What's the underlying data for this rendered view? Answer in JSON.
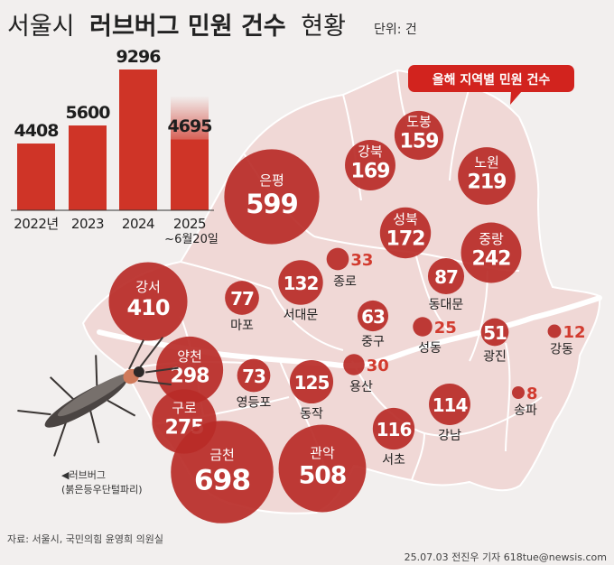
{
  "header": {
    "title_light": "서울시",
    "title_bold": "러브버그 민원 건수",
    "title_end": "현황",
    "unit": "단위: 건"
  },
  "legend": {
    "label": "올해 지역별 민원 건수"
  },
  "caption": {
    "line1": "◀러브버그",
    "line2": "(붉은등우단털파리)"
  },
  "footer": {
    "source": "자료: 서울시, 국민의힘 윤영희 의원실",
    "credit": "25.07.03 전진우 기자 618tue@newsis.com"
  },
  "colors": {
    "bar": "#cf3427",
    "bubble": "#b92b27",
    "map": "#f0d8d6",
    "map_border": "#ffffff",
    "background": "#f2efee",
    "legend": "#d2231e"
  },
  "chart_data": [
    {
      "type": "bar",
      "categories": [
        "2022년",
        "2023",
        "2024",
        "2025"
      ],
      "category_sub": [
        "",
        "",
        "",
        "~6월20일"
      ],
      "values": [
        4408,
        5600,
        9296,
        4695
      ]
    },
    {
      "type": "bubble-map",
      "districts": [
        {
          "name": "도봉",
          "value": 159,
          "style": "inside"
        },
        {
          "name": "노원",
          "value": 219,
          "style": "inside"
        },
        {
          "name": "강북",
          "value": 169,
          "style": "inside"
        },
        {
          "name": "은평",
          "value": 599,
          "style": "inside"
        },
        {
          "name": "성북",
          "value": 172,
          "style": "inside"
        },
        {
          "name": "중랑",
          "value": 242,
          "style": "inside"
        },
        {
          "name": "종로",
          "value": 33,
          "style": "outside"
        },
        {
          "name": "동대문",
          "value": 87,
          "style": "below"
        },
        {
          "name": "서대문",
          "value": 132,
          "style": "below"
        },
        {
          "name": "마포",
          "value": 77,
          "style": "below"
        },
        {
          "name": "강서",
          "value": 410,
          "style": "inside"
        },
        {
          "name": "중구",
          "value": 63,
          "style": "below"
        },
        {
          "name": "성동",
          "value": 25,
          "style": "outside"
        },
        {
          "name": "광진",
          "value": 51,
          "style": "below"
        },
        {
          "name": "강동",
          "value": 12,
          "style": "outside"
        },
        {
          "name": "양천",
          "value": 298,
          "style": "inside"
        },
        {
          "name": "영등포",
          "value": 73,
          "style": "below"
        },
        {
          "name": "동작",
          "value": 125,
          "style": "below"
        },
        {
          "name": "용산",
          "value": 30,
          "style": "outside"
        },
        {
          "name": "구로",
          "value": 275,
          "style": "inside"
        },
        {
          "name": "강남",
          "value": 114,
          "style": "below"
        },
        {
          "name": "송파",
          "value": 8,
          "style": "outside"
        },
        {
          "name": "서초",
          "value": 116,
          "style": "below"
        },
        {
          "name": "금천",
          "value": 698,
          "style": "inside"
        },
        {
          "name": "관악",
          "value": 508,
          "style": "inside"
        }
      ]
    }
  ]
}
